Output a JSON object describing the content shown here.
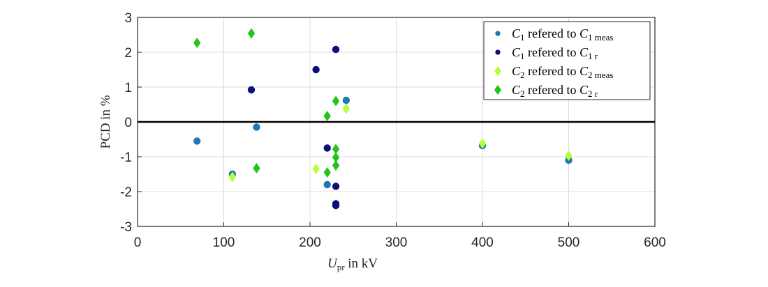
{
  "chart_data": {
    "type": "scatter",
    "xlabel": {
      "var": "U",
      "sub": "pr",
      "rest": " in kV"
    },
    "ylabel": "PCD in %",
    "xlim": [
      0,
      600
    ],
    "ylim": [
      -3,
      3
    ],
    "xticks": [
      "0",
      "100",
      "200",
      "300",
      "400",
      "500",
      "600"
    ],
    "yticks": [
      "3",
      "2",
      "1",
      "0",
      "-1",
      "-2",
      "-3"
    ],
    "grid": true,
    "legend_position": "top-right",
    "series": [
      {
        "legend": {
          "pre": "C",
          "n": "1",
          "mid": " refered to ",
          "post": "C",
          "sub": "1 meas"
        },
        "marker": "circle",
        "color": "#1f77b4",
        "points": [
          [
            69,
            -0.55
          ],
          [
            110,
            -1.5
          ],
          [
            138,
            -0.15
          ],
          [
            220,
            -1.8
          ],
          [
            242,
            0.62
          ],
          [
            400,
            -0.68
          ],
          [
            500,
            -1.1
          ]
        ]
      },
      {
        "legend": {
          "pre": "C",
          "n": "1",
          "mid": " refered to ",
          "post": "C",
          "sub": "1 r"
        },
        "marker": "circle",
        "color": "#0a0f7a",
        "points": [
          [
            132,
            0.92
          ],
          [
            207,
            1.5
          ],
          [
            220,
            -0.75
          ],
          [
            230,
            2.08
          ],
          [
            230,
            -1.85
          ],
          [
            230,
            -2.35
          ],
          [
            230,
            -2.4
          ]
        ]
      },
      {
        "legend": {
          "pre": "C",
          "n": "2",
          "mid": " refered to ",
          "post": "C",
          "sub": "2 meas"
        },
        "marker": "diamond",
        "color": "#b5ff3a",
        "points": [
          [
            110,
            -1.58
          ],
          [
            207,
            -1.35
          ],
          [
            242,
            0.38
          ],
          [
            400,
            -0.62
          ],
          [
            500,
            -0.97
          ]
        ]
      },
      {
        "legend": {
          "pre": "C",
          "n": "2",
          "mid": " refered to ",
          "post": "C",
          "sub": "2 r"
        },
        "marker": "diamond",
        "color": "#22c41a",
        "points": [
          [
            69,
            2.27
          ],
          [
            132,
            2.54
          ],
          [
            138,
            -1.33
          ],
          [
            220,
            0.17
          ],
          [
            220,
            -1.45
          ],
          [
            230,
            0.6
          ],
          [
            230,
            -0.78
          ],
          [
            230,
            -1.02
          ],
          [
            230,
            -1.25
          ]
        ]
      }
    ]
  }
}
